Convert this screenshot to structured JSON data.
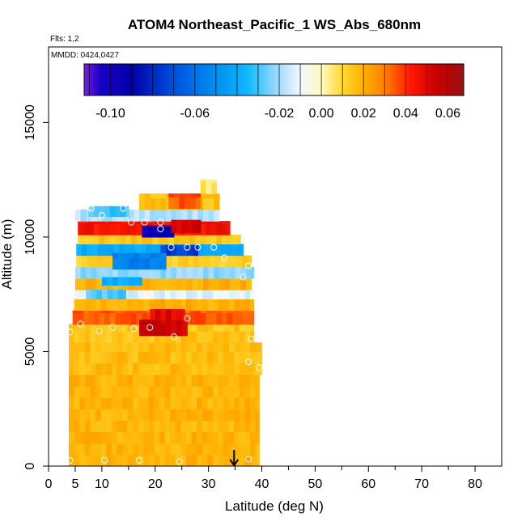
{
  "chart_data": {
    "type": "heatmap",
    "title": "ATOM4 Northeast_Pacific_1 WS_Abs_680nm",
    "note_flights": "Flts: 1,2",
    "note_dates": "MMDD: 0424,0427",
    "xlabel": "Latitude (deg N)",
    "ylabel": "Altitude (m)",
    "xlim": [
      0,
      85
    ],
    "ylim": [
      0,
      18300
    ],
    "x_ticks": [
      0,
      10,
      20,
      30,
      40,
      50,
      60,
      70,
      80
    ],
    "x_tick_labels": [
      "0",
      "10",
      "20",
      "30",
      "40",
      "50",
      "60",
      "70",
      "80"
    ],
    "x_extra_ticks": [
      5
    ],
    "x_extra_tick_labels": [
      "5"
    ],
    "y_ticks": [
      0,
      5000,
      10000,
      15000
    ],
    "y_tick_labels": [
      "0",
      "5000",
      "10000",
      "15000"
    ],
    "grid": false,
    "colorbar": {
      "position": "top-inside",
      "range": [
        -0.1125,
        0.0675
      ],
      "tick_values": [
        -0.1,
        -0.06,
        -0.02,
        0.0,
        0.02,
        0.04,
        0.06
      ],
      "tick_labels": [
        "-0.10",
        "-0.06",
        "-0.02",
        "0.00",
        "0.02",
        "0.04",
        "0.06"
      ],
      "stops": [
        {
          "v": -0.1125,
          "color": "#7a1fe0"
        },
        {
          "v": -0.105,
          "color": "#1a00c8"
        },
        {
          "v": -0.09,
          "color": "#0000a8"
        },
        {
          "v": -0.07,
          "color": "#0050e0"
        },
        {
          "v": -0.05,
          "color": "#0090f0"
        },
        {
          "v": -0.035,
          "color": "#10b8ff"
        },
        {
          "v": -0.02,
          "color": "#a8dcff"
        },
        {
          "v": -0.01,
          "color": "#f0f8ff"
        },
        {
          "v": 0.0,
          "color": "#fffac0"
        },
        {
          "v": 0.01,
          "color": "#ffd830"
        },
        {
          "v": 0.02,
          "color": "#ffb000"
        },
        {
          "v": 0.03,
          "color": "#ff8000"
        },
        {
          "v": 0.042,
          "color": "#ff1a00"
        },
        {
          "v": 0.055,
          "color": "#c80000"
        },
        {
          "v": 0.0675,
          "color": "#9a1010"
        }
      ]
    },
    "flight_marker_latitude": 34.8,
    "bands": [
      {
        "alt": [
          0,
          4000
        ],
        "lat": [
          3.8,
          39.5
        ],
        "value": 0.019
      },
      {
        "alt": [
          4000,
          5400
        ],
        "lat": [
          3.8,
          40.0
        ],
        "value": 0.017
      },
      {
        "alt": [
          5400,
          6200
        ],
        "lat": [
          3.8,
          38.5
        ],
        "value": 0.015
      },
      {
        "alt": [
          6200,
          6800
        ],
        "lat": [
          4.5,
          38.5
        ],
        "value": 0.035
      },
      {
        "alt": [
          6800,
          7300
        ],
        "lat": [
          4.8,
          38.5
        ],
        "value": 0.02
      },
      {
        "alt": [
          7300,
          7700
        ],
        "lat": [
          4.8,
          38.5
        ],
        "value": -0.012
      },
      {
        "alt": [
          7700,
          8200
        ],
        "lat": [
          5.0,
          38.0
        ],
        "value": 0.02
      },
      {
        "alt": [
          8200,
          8700
        ],
        "lat": [
          5.0,
          38.5
        ],
        "value": -0.022
      },
      {
        "alt": [
          8700,
          9200
        ],
        "lat": [
          5.2,
          38.0
        ],
        "value": 0.012
      },
      {
        "alt": [
          9200,
          9700
        ],
        "lat": [
          5.2,
          36.5
        ],
        "value": -0.04
      },
      {
        "alt": [
          9700,
          10100
        ],
        "lat": [
          5.5,
          36.0
        ],
        "value": 0.014
      },
      {
        "alt": [
          10100,
          10700
        ],
        "lat": [
          5.5,
          34.0
        ],
        "value": 0.045
      },
      {
        "alt": [
          10700,
          11200
        ],
        "lat": [
          5.0,
          32.0
        ],
        "value": -0.018
      },
      {
        "alt": [
          11200,
          11900
        ],
        "lat": [
          17.0,
          32.0
        ],
        "value": 0.016
      },
      {
        "alt": [
          11900,
          12500
        ],
        "lat": [
          28.5,
          31.5
        ],
        "value": 0.006
      }
    ],
    "patches": [
      {
        "alt": [
          5700,
          6400
        ],
        "lat": [
          17.0,
          26.0
        ],
        "value": 0.055
      },
      {
        "alt": [
          6400,
          6850
        ],
        "lat": [
          19.0,
          25.5
        ],
        "value": 0.05
      },
      {
        "alt": [
          10000,
          10500
        ],
        "lat": [
          17.5,
          23.5
        ],
        "value": -0.095
      },
      {
        "alt": [
          9200,
          9650
        ],
        "lat": [
          21.0,
          28.0
        ],
        "value": -0.075
      },
      {
        "alt": [
          8600,
          9300
        ],
        "lat": [
          12.0,
          22.0
        ],
        "value": -0.055
      },
      {
        "alt": [
          7900,
          8250
        ],
        "lat": [
          10.0,
          17.5
        ],
        "value": -0.04
      },
      {
        "alt": [
          7300,
          7700
        ],
        "lat": [
          7.0,
          14.5
        ],
        "value": -0.028
      },
      {
        "alt": [
          10900,
          11350
        ],
        "lat": [
          7.5,
          15.0
        ],
        "value": -0.03
      },
      {
        "alt": [
          10200,
          10750
        ],
        "lat": [
          23.0,
          28.5
        ],
        "value": 0.055
      },
      {
        "alt": [
          11250,
          11900
        ],
        "lat": [
          22.5,
          28.5
        ],
        "value": 0.035
      }
    ],
    "sample_points": [
      {
        "lat": 4.0,
        "alt": 250
      },
      {
        "lat": 10.5,
        "alt": 250
      },
      {
        "lat": 17.0,
        "alt": 250
      },
      {
        "lat": 24.5,
        "alt": 200
      },
      {
        "lat": 37.5,
        "alt": 300
      },
      {
        "lat": 4.0,
        "alt": 5850
      },
      {
        "lat": 9.5,
        "alt": 5900
      },
      {
        "lat": 12.0,
        "alt": 6050
      },
      {
        "lat": 16.0,
        "alt": 6000
      },
      {
        "lat": 19.0,
        "alt": 6050
      },
      {
        "lat": 23.5,
        "alt": 5650
      },
      {
        "lat": 26.0,
        "alt": 6450
      },
      {
        "lat": 38.0,
        "alt": 5550
      },
      {
        "lat": 37.5,
        "alt": 4550
      },
      {
        "lat": 39.5,
        "alt": 4300
      },
      {
        "lat": 36.5,
        "alt": 8250
      },
      {
        "lat": 37.5,
        "alt": 8750
      },
      {
        "lat": 5.0,
        "alt": 11300
      },
      {
        "lat": 7.5,
        "alt": 11300
      },
      {
        "lat": 8.0,
        "alt": 11250
      },
      {
        "lat": 14.0,
        "alt": 11250
      },
      {
        "lat": 10.0,
        "alt": 10950
      },
      {
        "lat": 15.5,
        "alt": 10650
      },
      {
        "lat": 18.0,
        "alt": 10650
      },
      {
        "lat": 21.0,
        "alt": 10650
      },
      {
        "lat": 21.0,
        "alt": 10350
      },
      {
        "lat": 23.0,
        "alt": 9550
      },
      {
        "lat": 26.0,
        "alt": 9550
      },
      {
        "lat": 28.0,
        "alt": 9550
      },
      {
        "lat": 31.0,
        "alt": 9550
      },
      {
        "lat": 33.0,
        "alt": 9100
      },
      {
        "lat": 6.0,
        "alt": 6200
      }
    ]
  }
}
